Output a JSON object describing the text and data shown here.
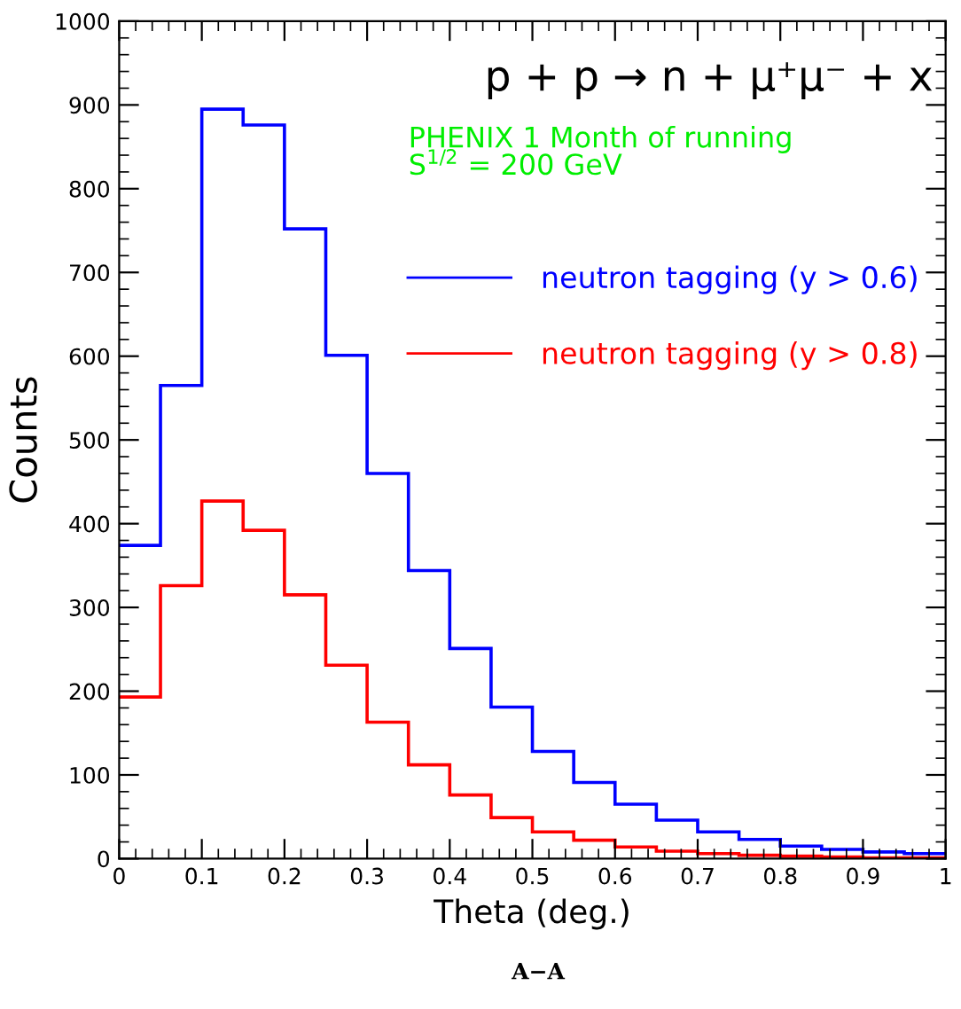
{
  "chart_data": {
    "type": "histogram",
    "title": "p + p → n + μ⁺μ⁻ + x",
    "subtitle": "PHENIX 1 Month of running\nS$^{1/2}$ = 200 GeV",
    "xlabel": "Theta (deg.)",
    "ylabel": "Counts",
    "annotations": [
      "A−A"
    ],
    "bins": [
      0,
      0.05,
      0.1,
      0.15,
      0.2,
      0.25,
      0.3,
      0.35,
      0.4,
      0.45,
      0.5,
      0.55,
      0.6,
      0.65,
      0.7,
      0.75,
      0.8,
      0.85,
      0.9,
      0.95,
      1
    ],
    "series": [
      {
        "name": "neutron tagging (y > 0.6)",
        "color": "#0000ff",
        "values": [
          374,
          565,
          895,
          876,
          752,
          601,
          460,
          344,
          251,
          181,
          128,
          91,
          65,
          46,
          32,
          23,
          15,
          11,
          8,
          6
        ]
      },
      {
        "name": "neutron tagging (y > 0.8)",
        "color": "#ff0000",
        "values": [
          193,
          326,
          427,
          392,
          315,
          231,
          163,
          112,
          76,
          49,
          32,
          22,
          14,
          9,
          6,
          4,
          3,
          2,
          1,
          1
        ]
      }
    ],
    "xlim": [
      0,
      1
    ],
    "ylim": [
      0,
      1000
    ],
    "xticks": [
      0,
      0.1,
      0.2,
      0.3,
      0.4,
      0.5,
      0.6,
      0.7,
      0.8,
      0.9,
      1
    ],
    "yticks": [
      0,
      100,
      200,
      300,
      400,
      500,
      600,
      700,
      800,
      900,
      1000
    ],
    "grid": false,
    "legend": "top right"
  }
}
